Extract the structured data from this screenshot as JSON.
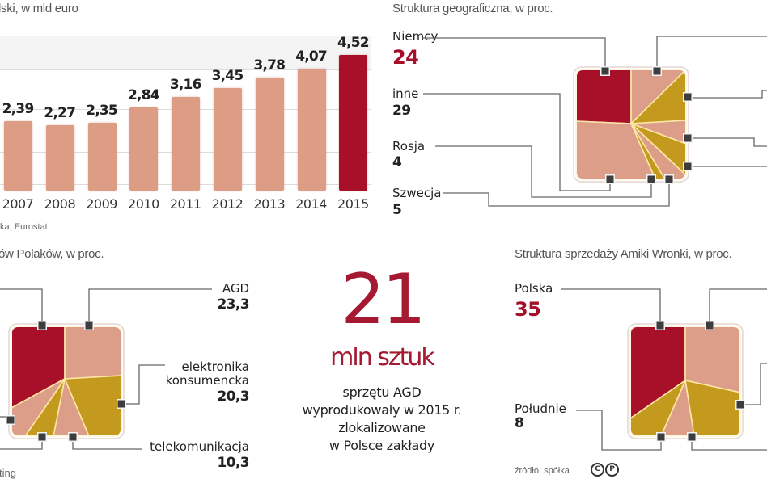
{
  "colors": {
    "bar": "#dd9c84",
    "highlight": "#a8102a",
    "light_slice": "#dc9e88",
    "gold_slice": "#c49a1e",
    "separator": "#fbe7a6",
    "connector": "#666666",
    "marker": "#3d3d3d"
  },
  "bar_chart": {
    "subtitle": "lski, w mld euro",
    "source": "ka, Eurostat"
  },
  "geo_chart": {
    "subtitle": "Struktura geograficzna, w proc.",
    "labels": [
      {
        "name": "Niemcy",
        "value": "24"
      },
      {
        "name": "inne",
        "value": "29"
      },
      {
        "name": "Rosja",
        "value": "4"
      },
      {
        "name": "Szwecja",
        "value": "5"
      }
    ]
  },
  "spending_chart": {
    "subtitle": "ów Polaków, w proc.",
    "labels": [
      {
        "name": "AGD",
        "value": "23,3"
      },
      {
        "name_line1": "elektronika",
        "name_line2": "konsumencka",
        "value": "20,3"
      },
      {
        "name": "telekomunikacja",
        "value": "10,3"
      }
    ],
    "cut_label": "ting"
  },
  "headline": {
    "number": "21",
    "unit": "mln sztuk",
    "description_lines": [
      "sprzętu AGD",
      "wyprodukowały w 2015 r.",
      "zlokalizowane",
      "w Polsce zakłady"
    ]
  },
  "sales_chart": {
    "subtitle": "Struktura sprzedaży Amiki Wronki, w proc.",
    "labels": [
      {
        "name": "Polska",
        "value": "35"
      },
      {
        "name": "Południe",
        "value": "8"
      }
    ],
    "source": "źródło: spółka",
    "license_icon": "cc-by-icon"
  },
  "chart_data": [
    {
      "type": "bar",
      "title": "...lski, w mld euro",
      "xlabel": "",
      "ylabel": "mld euro",
      "categories": [
        "2007",
        "2008",
        "2009",
        "2010",
        "2011",
        "2012",
        "2013",
        "2014",
        "2015"
      ],
      "values": [
        2.39,
        2.27,
        2.35,
        2.84,
        3.16,
        3.45,
        3.78,
        4.07,
        4.52
      ],
      "value_labels": [
        "2,39",
        "2,27",
        "2,35",
        "2,84",
        "3,16",
        "3,45",
        "3,78",
        "4,07",
        "4,52"
      ],
      "highlight": "2015",
      "grid": true,
      "source": "...ka, Eurostat"
    },
    {
      "type": "pie",
      "title": "Struktura geograficzna, w proc.",
      "labels": [
        "Niemcy",
        "inne",
        "Rosja",
        "Szwecja"
      ],
      "values": [
        24,
        29,
        4,
        5
      ],
      "note": "additional slices labeled off-screen to the right"
    },
    {
      "type": "pie",
      "title": "...ów Polaków, w proc.",
      "labels": [
        "AGD",
        "elektronika konsumencka",
        "telekomunikacja",
        "...ting"
      ],
      "values": [
        23.3,
        20.3,
        10.3,
        null
      ],
      "note": "left-side labels cut off"
    },
    {
      "type": "pie",
      "title": "Struktura sprzedaży Amiki Wronki, w proc.",
      "labels": [
        "Polska",
        "Południe"
      ],
      "values": [
        35,
        8
      ],
      "source": "źródło: spółka",
      "note": "right-side labels cut off"
    }
  ]
}
